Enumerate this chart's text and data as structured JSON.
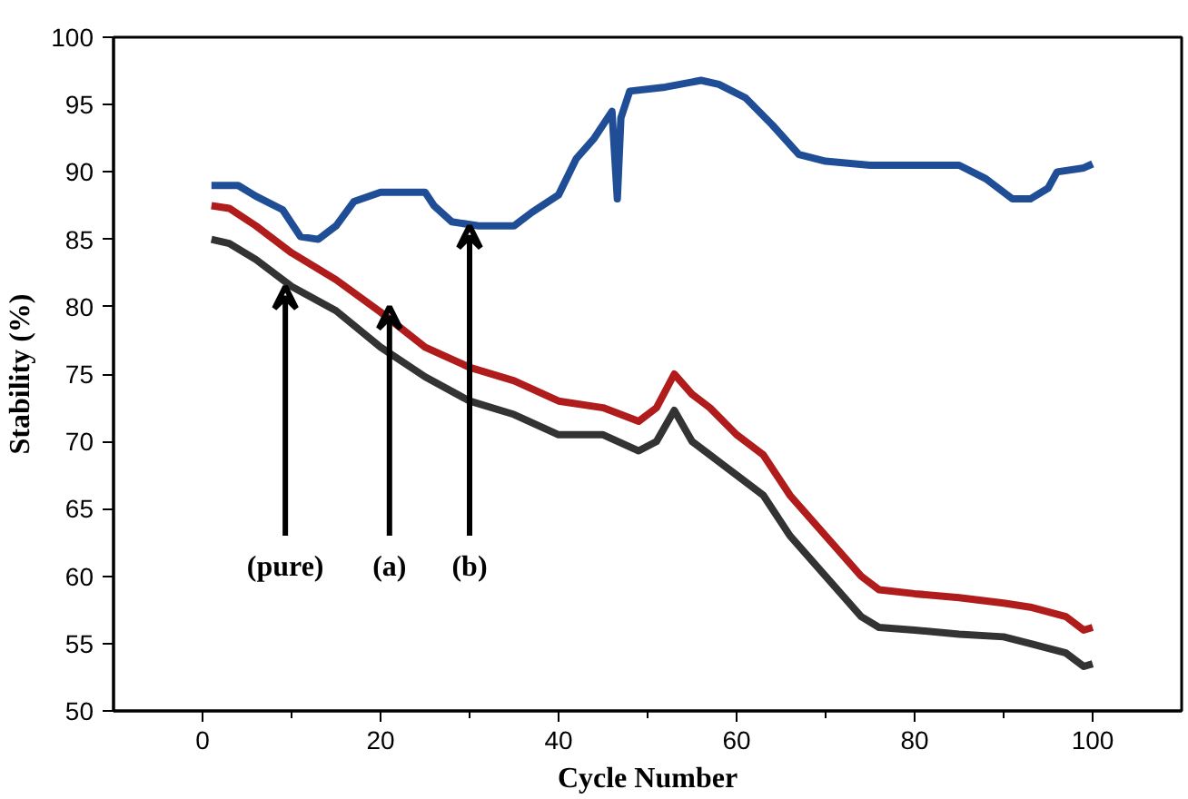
{
  "chart_data": {
    "type": "line",
    "xlabel": "Cycle Number",
    "ylabel": "Stability (%)",
    "xlim": [
      -10,
      110
    ],
    "ylim": [
      50,
      100
    ],
    "xticks": [
      0,
      20,
      40,
      60,
      80,
      100
    ],
    "yticks": [
      50,
      55,
      60,
      65,
      70,
      75,
      80,
      85,
      90,
      95,
      100
    ],
    "grid": false,
    "marker": "none",
    "line_style": "solid",
    "series": [
      {
        "color": "#1f4e96",
        "x": [
          1,
          4,
          6,
          9,
          11,
          13,
          15,
          17,
          20,
          25,
          26,
          28,
          31,
          35,
          37,
          40,
          42,
          44,
          46,
          46.6,
          47,
          48,
          52,
          56,
          58,
          61,
          64,
          67,
          70,
          75,
          85,
          88,
          91,
          93,
          95,
          96,
          99,
          100
        ],
        "values": [
          89,
          89,
          88.2,
          87.2,
          85.2,
          85,
          86,
          87.8,
          88.5,
          88.5,
          87.5,
          86.3,
          86,
          86,
          87,
          88.3,
          91,
          92.5,
          94.5,
          88,
          94,
          96,
          96.3,
          96.8,
          96.5,
          95.5,
          93.5,
          91.3,
          90.8,
          90.5,
          90.5,
          89.5,
          88,
          88,
          88.8,
          90,
          90.3,
          90.6
        ]
      },
      {
        "color": "#b01c1c",
        "x": [
          1,
          3,
          6,
          10,
          15,
          20,
          25,
          30,
          35,
          40,
          45,
          49,
          51,
          53,
          55,
          57,
          60,
          63,
          66,
          70,
          74,
          76,
          80,
          85,
          90,
          93,
          97,
          99,
          100
        ],
        "values": [
          87.5,
          87.3,
          86,
          84,
          82,
          79.6,
          77,
          75.5,
          74.5,
          73,
          72.5,
          71.5,
          72.5,
          75,
          73.5,
          72.5,
          70.5,
          69,
          66,
          63,
          60,
          59,
          58.7,
          58.4,
          58,
          57.7,
          57,
          56,
          56.2
        ]
      },
      {
        "color": "#333333",
        "x": [
          1,
          3,
          6,
          10,
          15,
          20,
          25,
          30,
          35,
          40,
          45,
          49,
          51,
          53,
          55,
          57,
          60,
          63,
          66,
          70,
          74,
          76,
          80,
          85,
          90,
          93,
          97,
          99,
          100
        ],
        "values": [
          85,
          84.7,
          83.5,
          81.5,
          79.7,
          77,
          74.8,
          73,
          72,
          70.5,
          70.5,
          69.3,
          70,
          72.3,
          70,
          69,
          67.5,
          66,
          63,
          60,
          57,
          56.2,
          56,
          55.7,
          55.5,
          55,
          54.3,
          53.3,
          53.5
        ]
      }
    ],
    "annotations": [
      {
        "text": "(pure)",
        "x": 9.3,
        "y": 81.5
      },
      {
        "text": "(a)",
        "x": 21,
        "y": 80
      },
      {
        "text": "(b)",
        "x": 30,
        "y": 86
      }
    ]
  }
}
